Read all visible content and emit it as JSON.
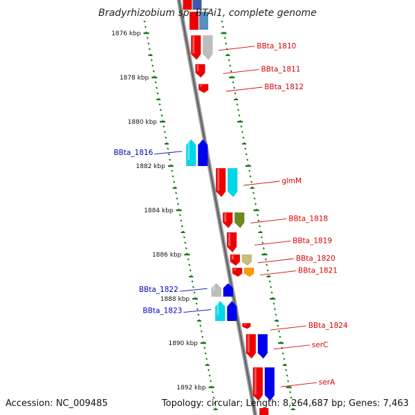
{
  "title": "Bradyrhizobium sp. BTAi1, complete genome",
  "footer": {
    "accession": "Accession: NC_009485",
    "topology": "Topology: circular; Length: 8,264,687 bp; Genes: 7,463"
  },
  "colors": {
    "track": "#8c8c8c",
    "ticks": "#1a7a1a",
    "plus_label": "#dd0000",
    "minus_label": "#0000bb",
    "gene_red": "#ee0000",
    "gene_blue": "#0000ee",
    "gene_cyan": "#00d8e8",
    "gene_gray": "#bdbdbd",
    "gene_olive": "#6b8a20",
    "gene_khaki": "#c8bd7a",
    "gene_orange": "#ff9900",
    "gene_steel": "#5a8fc0"
  },
  "ruler": [
    {
      "kbp": 1876,
      "label": "1876 kbp"
    },
    {
      "kbp": 1878,
      "label": "1878 kbp"
    },
    {
      "kbp": 1880,
      "label": "1880 kbp"
    },
    {
      "kbp": 1882,
      "label": "1882 kbp"
    },
    {
      "kbp": 1884,
      "label": "1884 kbp"
    },
    {
      "kbp": 1886,
      "label": "1886 kbp"
    },
    {
      "kbp": 1888,
      "label": "1888 kbp"
    },
    {
      "kbp": 1890,
      "label": "1890 kbp"
    },
    {
      "kbp": 1892,
      "label": "1892 kbp"
    }
  ],
  "genes": [
    {
      "name": "BBta_1810",
      "strand": "+",
      "start_kbp": 1876.1,
      "end_kbp": 1877.2,
      "color": "red",
      "label": "BBta_1810"
    },
    {
      "name": "BBta_1811",
      "strand": "+",
      "start_kbp": 1877.4,
      "end_kbp": 1878.0,
      "color": "red",
      "label": "BBta_1811"
    },
    {
      "name": "BBta_1812",
      "strand": "+",
      "start_kbp": 1878.3,
      "end_kbp": 1878.7,
      "color": "red",
      "label": "BBta_1812"
    },
    {
      "name": "BBta_1816",
      "strand": "-",
      "start_kbp": 1880.8,
      "end_kbp": 1882.0,
      "color": "cyan",
      "label": "BBta_1816"
    },
    {
      "name": "glmM",
      "strand": "+",
      "start_kbp": 1882.1,
      "end_kbp": 1883.4,
      "color": "red",
      "label": "glmM"
    },
    {
      "name": "BBta_1818",
      "strand": "+",
      "start_kbp": 1884.1,
      "end_kbp": 1884.8,
      "color": "red",
      "label": "BBta_1818"
    },
    {
      "name": "BBta_1819",
      "strand": "+",
      "start_kbp": 1885.0,
      "end_kbp": 1885.9,
      "color": "red",
      "label": "BBta_1819"
    },
    {
      "name": "BBta_1820",
      "strand": "+",
      "start_kbp": 1886.0,
      "end_kbp": 1886.5,
      "color": "red",
      "label": "BBta_1820"
    },
    {
      "name": "BBta_1821",
      "strand": "+",
      "start_kbp": 1886.6,
      "end_kbp": 1887.0,
      "color": "red",
      "label": "BBta_1821"
    },
    {
      "name": "BBta_1822",
      "strand": "-",
      "start_kbp": 1887.3,
      "end_kbp": 1887.9,
      "color": "gray",
      "label": "BBta_1822"
    },
    {
      "name": "BBta_1823",
      "strand": "-",
      "start_kbp": 1888.1,
      "end_kbp": 1889.0,
      "color": "cyan",
      "label": "BBta_1823"
    },
    {
      "name": "BBta_1824",
      "strand": "+",
      "start_kbp": 1889.1,
      "end_kbp": 1889.35,
      "color": "red",
      "label": "BBta_1824"
    },
    {
      "name": "serC",
      "strand": "+",
      "start_kbp": 1889.6,
      "end_kbp": 1890.7,
      "color": "red",
      "label": "serC"
    },
    {
      "name": "serA",
      "strand": "+",
      "start_kbp": 1891.1,
      "end_kbp": 1892.6,
      "color": "red",
      "label": "serA"
    }
  ]
}
